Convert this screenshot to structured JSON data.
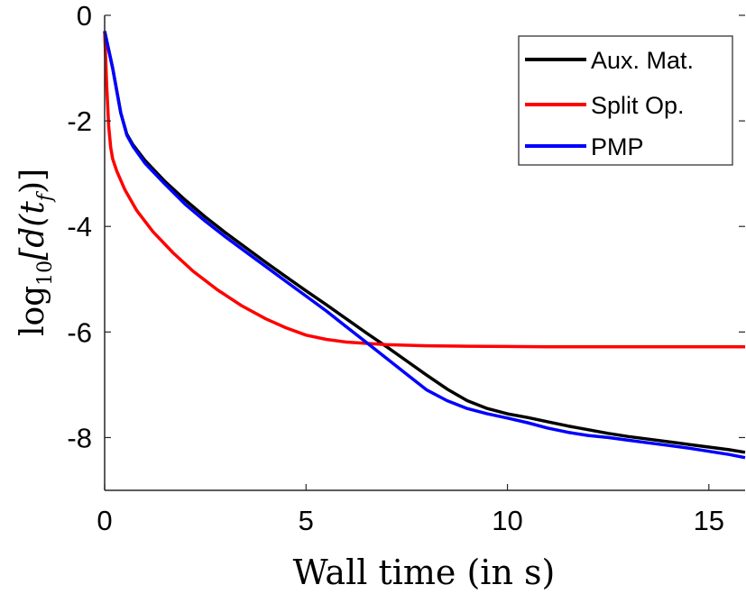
{
  "chart_data": {
    "type": "line",
    "title": "",
    "xlabel": "Wall time (in s)",
    "ylabel_parts": {
      "prefix": "log",
      "subscript": "10",
      "body": "[d(t",
      "sub_f": "f",
      "suffix": ")]"
    },
    "xlim": [
      0,
      15.9
    ],
    "ylim": [
      -9,
      0
    ],
    "xticks": [
      0,
      5,
      10,
      15
    ],
    "yticks": [
      0,
      -2,
      -4,
      -6,
      -8
    ],
    "xtick_labels": [
      "0",
      "5",
      "10",
      "15"
    ],
    "ytick_labels": [
      "0",
      "-2",
      "-4",
      "-6",
      "-8"
    ],
    "grid": false,
    "legend_position": "top-right",
    "series": [
      {
        "name": "Aux. Mat.",
        "color": "#000000",
        "x": [
          0,
          0.2,
          0.4,
          0.55,
          0.7,
          1.0,
          1.5,
          2.0,
          2.5,
          3.0,
          3.5,
          4.0,
          4.5,
          5.0,
          5.5,
          6.0,
          6.5,
          7.0,
          7.5,
          8.0,
          8.5,
          9.0,
          9.5,
          10.0,
          10.5,
          11.0,
          11.5,
          12.0,
          12.5,
          13.0,
          13.5,
          14.0,
          14.5,
          15.0,
          15.5,
          15.9
        ],
        "y": [
          -0.3,
          -1.0,
          -1.85,
          -2.25,
          -2.45,
          -2.75,
          -3.15,
          -3.5,
          -3.82,
          -4.12,
          -4.4,
          -4.68,
          -4.95,
          -5.22,
          -5.48,
          -5.75,
          -6.02,
          -6.28,
          -6.55,
          -6.82,
          -7.08,
          -7.3,
          -7.45,
          -7.55,
          -7.62,
          -7.7,
          -7.78,
          -7.85,
          -7.92,
          -7.98,
          -8.03,
          -8.08,
          -8.13,
          -8.18,
          -8.23,
          -8.28
        ]
      },
      {
        "name": "Split Op.",
        "color": "#ff0000",
        "x": [
          0,
          0.05,
          0.1,
          0.15,
          0.2,
          0.3,
          0.5,
          0.8,
          1.2,
          1.7,
          2.2,
          2.8,
          3.4,
          4.0,
          4.5,
          5.0,
          5.5,
          6.0,
          7.0,
          8.0,
          9.0,
          10.0,
          11.0,
          12.0,
          13.0,
          14.0,
          15.0,
          15.9
        ],
        "y": [
          -0.3,
          -1.3,
          -2.1,
          -2.5,
          -2.72,
          -2.95,
          -3.3,
          -3.7,
          -4.1,
          -4.5,
          -4.85,
          -5.2,
          -5.5,
          -5.75,
          -5.92,
          -6.06,
          -6.14,
          -6.19,
          -6.24,
          -6.26,
          -6.27,
          -6.275,
          -6.28,
          -6.28,
          -6.28,
          -6.28,
          -6.28,
          -6.28
        ]
      },
      {
        "name": "PMP",
        "color": "#0000ff",
        "x": [
          0,
          0.2,
          0.4,
          0.55,
          0.7,
          1.0,
          1.5,
          2.0,
          2.5,
          3.0,
          3.5,
          4.0,
          4.5,
          5.0,
          5.5,
          6.0,
          6.5,
          7.0,
          7.5,
          8.0,
          8.5,
          9.0,
          9.5,
          10.0,
          10.5,
          11.0,
          11.5,
          12.0,
          12.5,
          13.0,
          13.5,
          14.0,
          14.5,
          15.0,
          15.5,
          15.9
        ],
        "y": [
          -0.3,
          -1.0,
          -1.85,
          -2.27,
          -2.48,
          -2.8,
          -3.2,
          -3.58,
          -3.9,
          -4.2,
          -4.48,
          -4.76,
          -5.04,
          -5.32,
          -5.6,
          -5.9,
          -6.2,
          -6.5,
          -6.8,
          -7.1,
          -7.3,
          -7.45,
          -7.55,
          -7.63,
          -7.72,
          -7.82,
          -7.9,
          -7.96,
          -8.0,
          -8.05,
          -8.1,
          -8.15,
          -8.2,
          -8.26,
          -8.32,
          -8.38
        ]
      }
    ]
  }
}
